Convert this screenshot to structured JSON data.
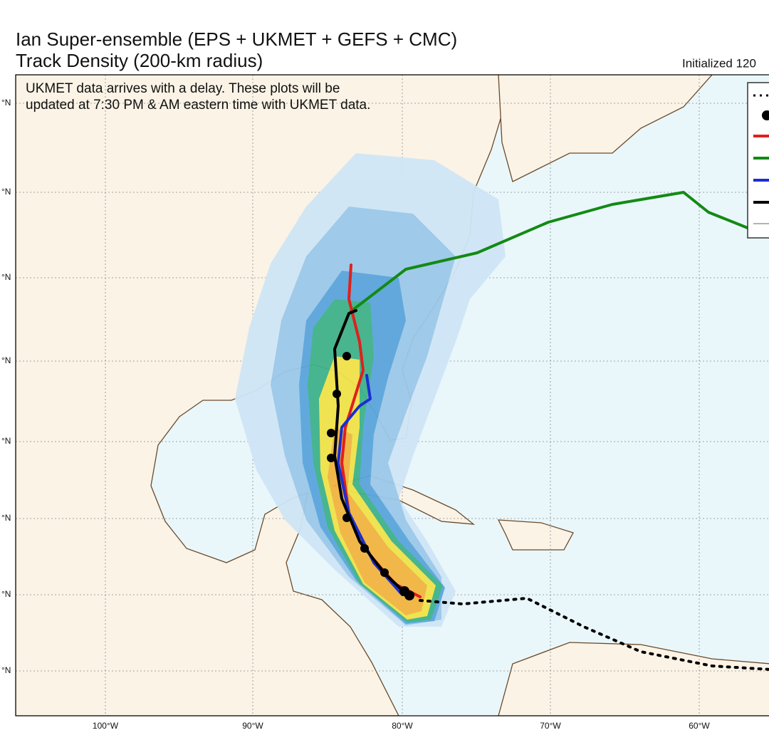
{
  "header": {
    "title": "Ian Super-ensemble (EPS + UKMET + GEFS + CMC)",
    "subtitle": "Track Density (200-km radius)",
    "initialized": "Initialized 120"
  },
  "annotation": [
    "UKMET data arrives with a delay. These plots will be",
    "updated at 7:30 PM & AM eastern time with UKMET data."
  ],
  "map": {
    "lat_labels": [
      "°N",
      "°N",
      "°N",
      "°N",
      "°N",
      "°N",
      "°N",
      "°N"
    ],
    "lon_labels": [
      "100°W",
      "90°W",
      "80°W",
      "70°W",
      "60°W"
    ]
  }
}
